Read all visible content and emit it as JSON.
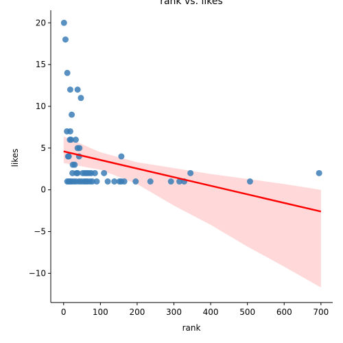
{
  "chart_data": {
    "type": "scatter",
    "title": "rank vs. likes",
    "xlabel": "rank",
    "ylabel": "likes",
    "xlim": [
      -35,
      732
    ],
    "ylim": [
      -13.5,
      21.5
    ],
    "xticks": [
      0,
      100,
      200,
      300,
      400,
      500,
      600,
      700
    ],
    "yticks": [
      -10,
      -5,
      0,
      5,
      10,
      15,
      20
    ],
    "grid": false,
    "legend": "none",
    "colors": {
      "points": "#3a7db6",
      "regression_line": "#ff0000",
      "confidence_band": "#ffcccc"
    },
    "points": [
      {
        "x": 1,
        "y": 20
      },
      {
        "x": 5,
        "y": 18
      },
      {
        "x": 10,
        "y": 14
      },
      {
        "x": 18,
        "y": 12
      },
      {
        "x": 38,
        "y": 12
      },
      {
        "x": 47,
        "y": 11
      },
      {
        "x": 22,
        "y": 9
      },
      {
        "x": 9,
        "y": 7
      },
      {
        "x": 18,
        "y": 7
      },
      {
        "x": 17,
        "y": 6
      },
      {
        "x": 20,
        "y": 6
      },
      {
        "x": 33,
        "y": 6
      },
      {
        "x": 38,
        "y": 5
      },
      {
        "x": 43,
        "y": 5
      },
      {
        "x": 14,
        "y": 4
      },
      {
        "x": 12,
        "y": 4
      },
      {
        "x": 42,
        "y": 4
      },
      {
        "x": 157,
        "y": 4
      },
      {
        "x": 25,
        "y": 3
      },
      {
        "x": 30,
        "y": 3
      },
      {
        "x": 24,
        "y": 2
      },
      {
        "x": 35,
        "y": 2
      },
      {
        "x": 38,
        "y": 2
      },
      {
        "x": 52,
        "y": 2
      },
      {
        "x": 58,
        "y": 2
      },
      {
        "x": 63,
        "y": 2
      },
      {
        "x": 69,
        "y": 2
      },
      {
        "x": 75,
        "y": 2
      },
      {
        "x": 85,
        "y": 2
      },
      {
        "x": 110,
        "y": 2
      },
      {
        "x": 345,
        "y": 2
      },
      {
        "x": 695,
        "y": 2
      },
      {
        "x": 10,
        "y": 1
      },
      {
        "x": 14,
        "y": 1
      },
      {
        "x": 18,
        "y": 1
      },
      {
        "x": 22,
        "y": 1
      },
      {
        "x": 28,
        "y": 1
      },
      {
        "x": 34,
        "y": 1
      },
      {
        "x": 42,
        "y": 1
      },
      {
        "x": 48,
        "y": 1
      },
      {
        "x": 55,
        "y": 1
      },
      {
        "x": 60,
        "y": 1
      },
      {
        "x": 65,
        "y": 1
      },
      {
        "x": 72,
        "y": 1
      },
      {
        "x": 78,
        "y": 1
      },
      {
        "x": 90,
        "y": 1
      },
      {
        "x": 120,
        "y": 1
      },
      {
        "x": 138,
        "y": 1
      },
      {
        "x": 152,
        "y": 1
      },
      {
        "x": 157,
        "y": 1
      },
      {
        "x": 165,
        "y": 1
      },
      {
        "x": 196,
        "y": 1
      },
      {
        "x": 236,
        "y": 1
      },
      {
        "x": 292,
        "y": 1
      },
      {
        "x": 315,
        "y": 1
      },
      {
        "x": 328,
        "y": 1
      },
      {
        "x": 507,
        "y": 1
      }
    ],
    "regression_line": [
      {
        "x": 0,
        "y": 4.6
      },
      {
        "x": 700,
        "y": -2.6
      }
    ],
    "confidence_band": {
      "x": [
        0,
        100,
        200,
        300,
        400,
        500,
        600,
        700
      ],
      "upper": [
        6.4,
        4.5,
        3.3,
        2.6,
        1.9,
        1.3,
        0.7,
        0.0
      ],
      "lower": [
        3.2,
        2.4,
        0.7,
        -1.9,
        -4.2,
        -6.8,
        -9.2,
        -11.7
      ]
    }
  }
}
